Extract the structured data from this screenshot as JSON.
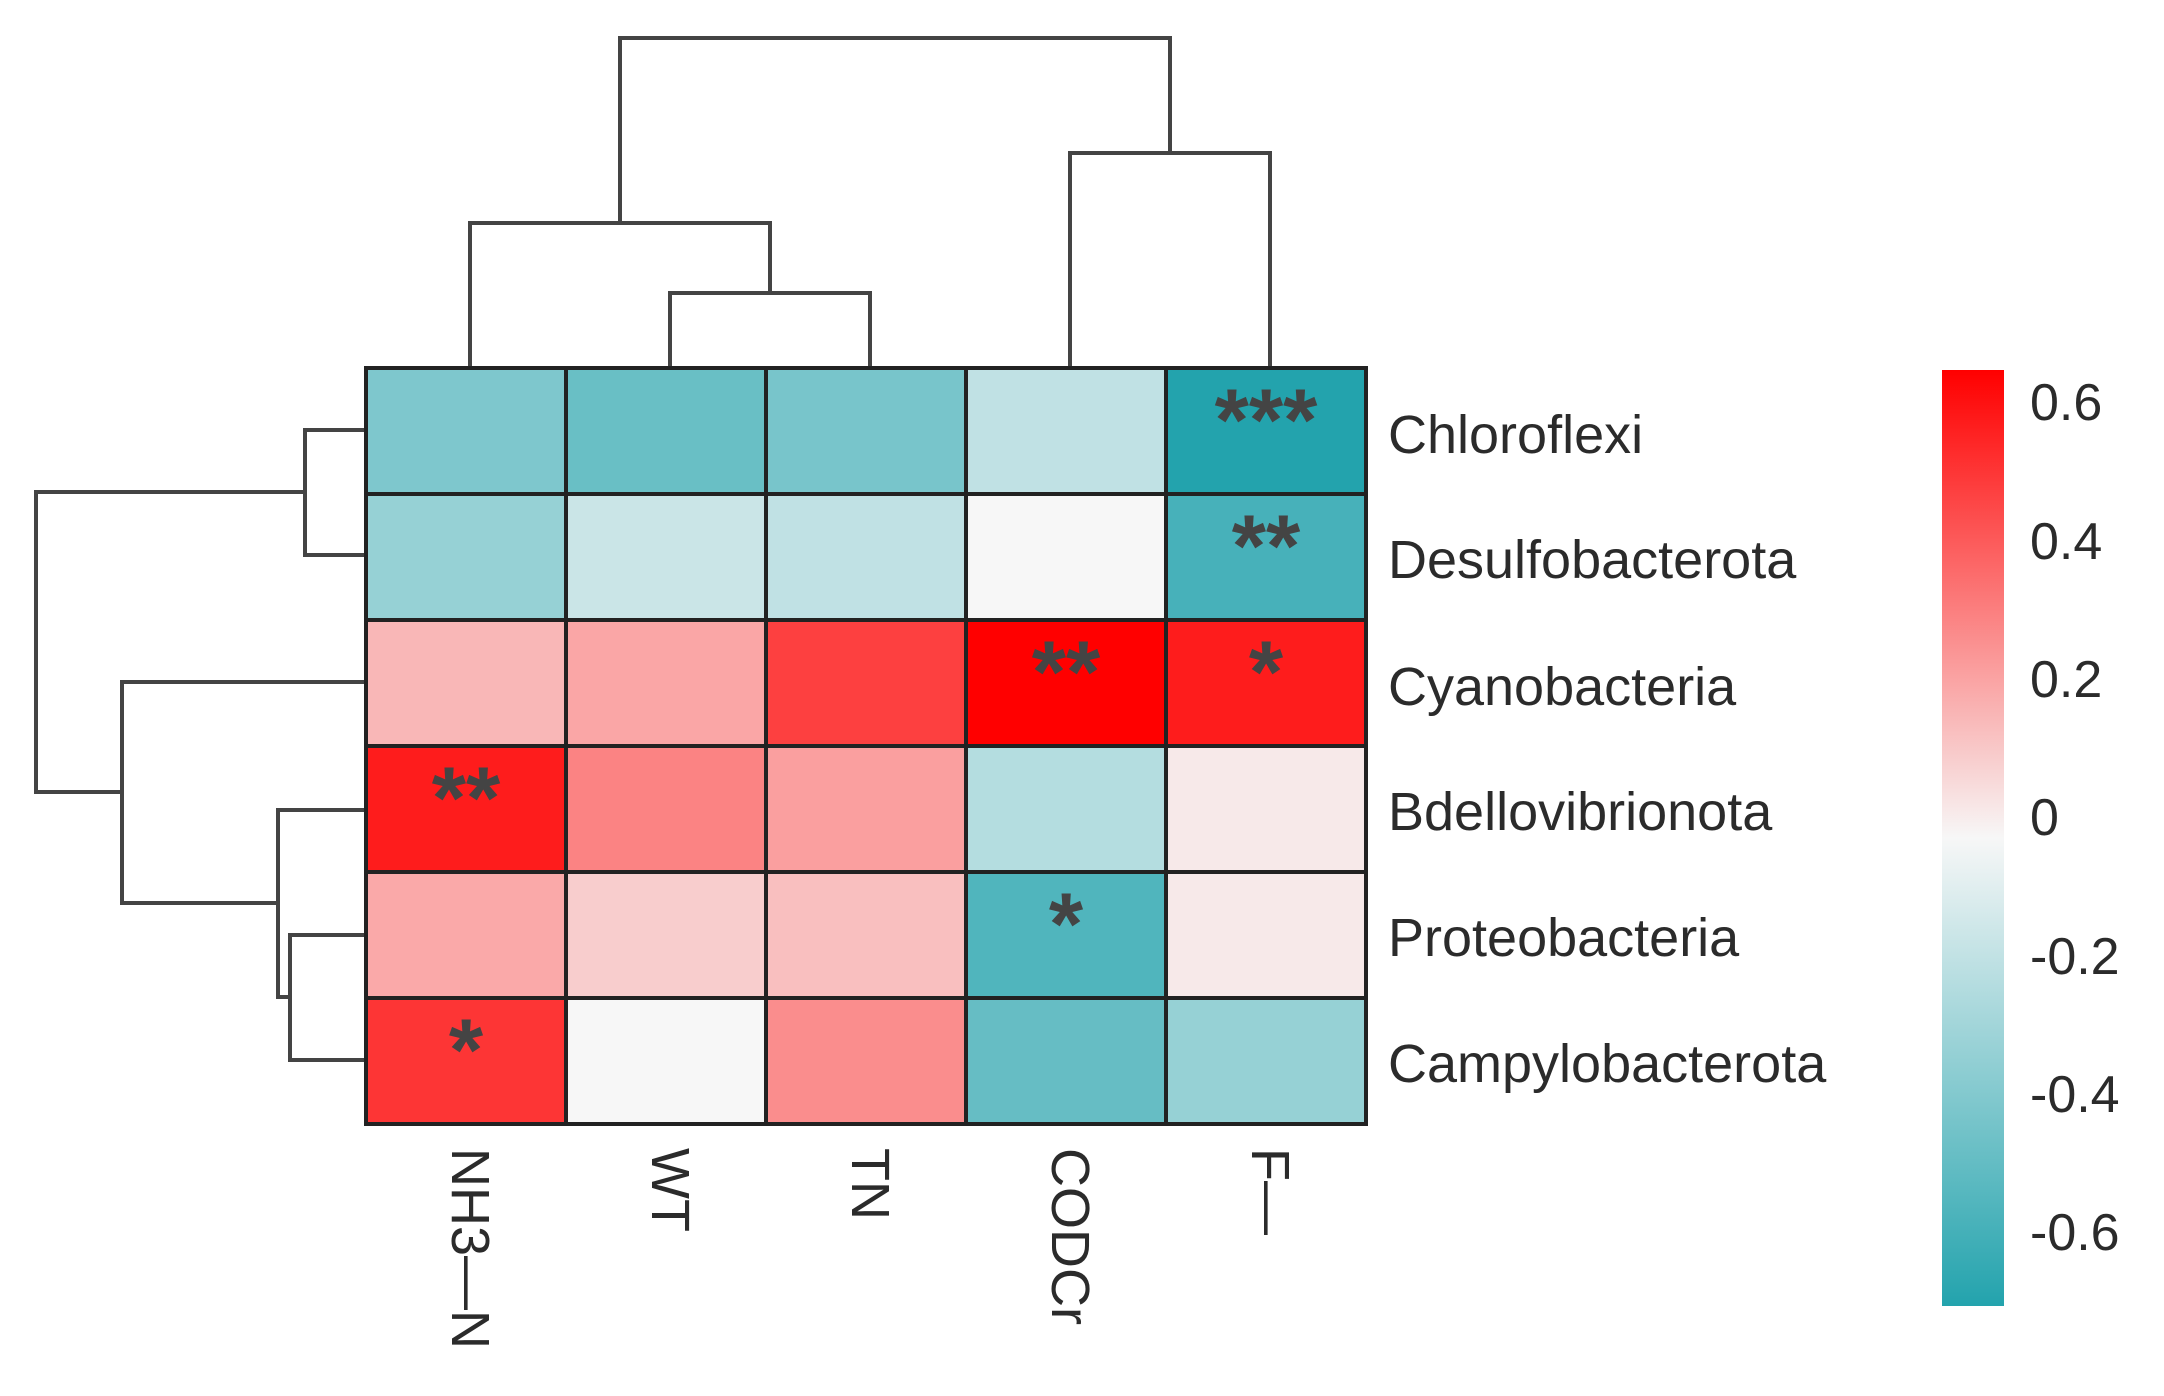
{
  "chart_data": {
    "type": "heatmap",
    "title": "",
    "rows": [
      "Chloroflexi",
      "Desulfobacterota",
      "Cyanobacteria",
      "Bdellovibrionota",
      "Proteobacteria",
      "Campylobacterota"
    ],
    "columns": [
      "NH3—N",
      "WT",
      "TN",
      "CODCr",
      "F—"
    ],
    "values": [
      [
        -0.4,
        -0.47,
        -0.42,
        -0.18,
        -0.7
      ],
      [
        -0.32,
        -0.15,
        -0.18,
        0.0,
        -0.58
      ],
      [
        0.18,
        0.23,
        0.52,
        0.7,
        0.62
      ],
      [
        0.62,
        0.33,
        0.25,
        -0.22,
        0.04
      ],
      [
        0.22,
        0.12,
        0.16,
        -0.55,
        0.04
      ],
      [
        0.55,
        0.0,
        0.3,
        -0.48,
        -0.32
      ]
    ],
    "significance": [
      [
        "",
        "",
        "",
        "",
        "***"
      ],
      [
        "",
        "",
        "",
        "",
        "**"
      ],
      [
        "",
        "",
        "",
        "**",
        "*"
      ],
      [
        "**",
        "",
        "",
        "",
        ""
      ],
      [
        "",
        "",
        "",
        "*",
        ""
      ],
      [
        "*",
        "",
        "",
        "",
        ""
      ]
    ],
    "colorbar": {
      "min": -0.7,
      "max": 0.7,
      "ticks": [
        0.6,
        0.4,
        0.2,
        0,
        -0.2,
        -0.4,
        -0.6
      ],
      "tick_labels": [
        "0.6",
        "0.4",
        "0.2",
        "0",
        "-0.2",
        "-0.4",
        "-0.6"
      ],
      "low_color": "#23a3ad",
      "mid_color": "#f7f7f7",
      "high_color": "#ff0000"
    },
    "row_dendrogram": true,
    "column_dendrogram": true
  }
}
